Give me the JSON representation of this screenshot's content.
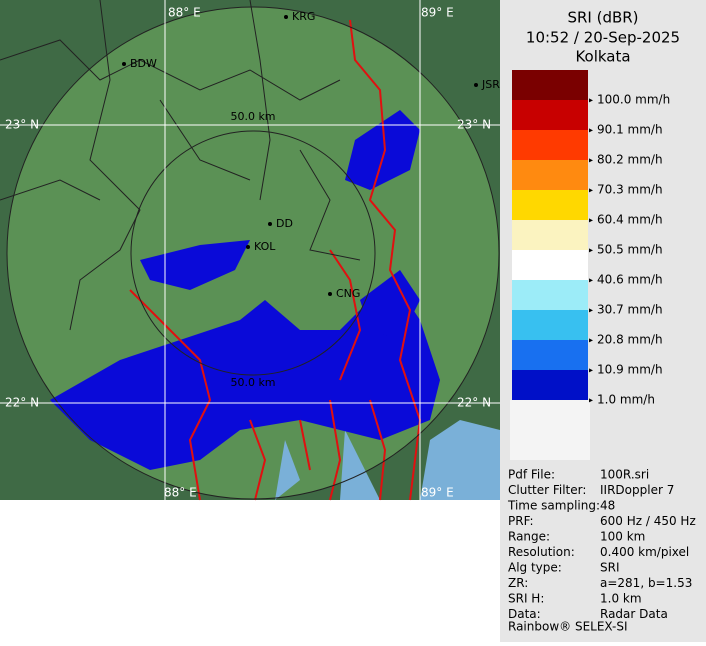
{
  "map": {
    "grid_labels": [
      "88° E",
      "89° E",
      "23° N",
      "23° N",
      "22° N",
      "22° N",
      "88° E",
      "89° E"
    ],
    "range_labels": [
      "50.0 km",
      "50.0 km"
    ],
    "places": [
      "KRG",
      "BDW",
      "JSR",
      "DD",
      "KOL",
      "CNG"
    ]
  },
  "header": {
    "title": "SRI (dBR)",
    "time": "10:52 / 20-Sep-2025",
    "station": "Kolkata"
  },
  "legend": {
    "colors": [
      "#7a0000",
      "#c80000",
      "#ff3a00",
      "#ff8a10",
      "#ffd800",
      "#fbf3c0",
      "#ffffff",
      "#9cecf8",
      "#38c0f0",
      "#1870f0",
      "#0010c8"
    ],
    "labels": [
      "100.0 mm/h",
      "90.1 mm/h",
      "80.2 mm/h",
      "70.3 mm/h",
      "60.4 mm/h",
      "50.5 mm/h",
      "40.6 mm/h",
      "30.7 mm/h",
      "20.8 mm/h",
      "10.9 mm/h",
      "1.0 mm/h"
    ]
  },
  "info": {
    "rows": [
      [
        "Pdf File:",
        "100R.sri"
      ],
      [
        "Clutter Filter:",
        "IIRDoppler 7"
      ],
      [
        "Time sampling:",
        "48"
      ],
      [
        "PRF:",
        "600 Hz / 450 Hz"
      ],
      [
        "Range:",
        "100 km"
      ],
      [
        "Resolution:",
        "0.400 km/pixel"
      ],
      [
        "Alg type:",
        "SRI"
      ],
      [
        "ZR:",
        "a=281, b=1.53"
      ],
      [
        "SRI H:",
        "1.0 km"
      ],
      [
        "Data:",
        "Radar Data"
      ]
    ],
    "footer": "Rainbow® SELEX-SI"
  }
}
